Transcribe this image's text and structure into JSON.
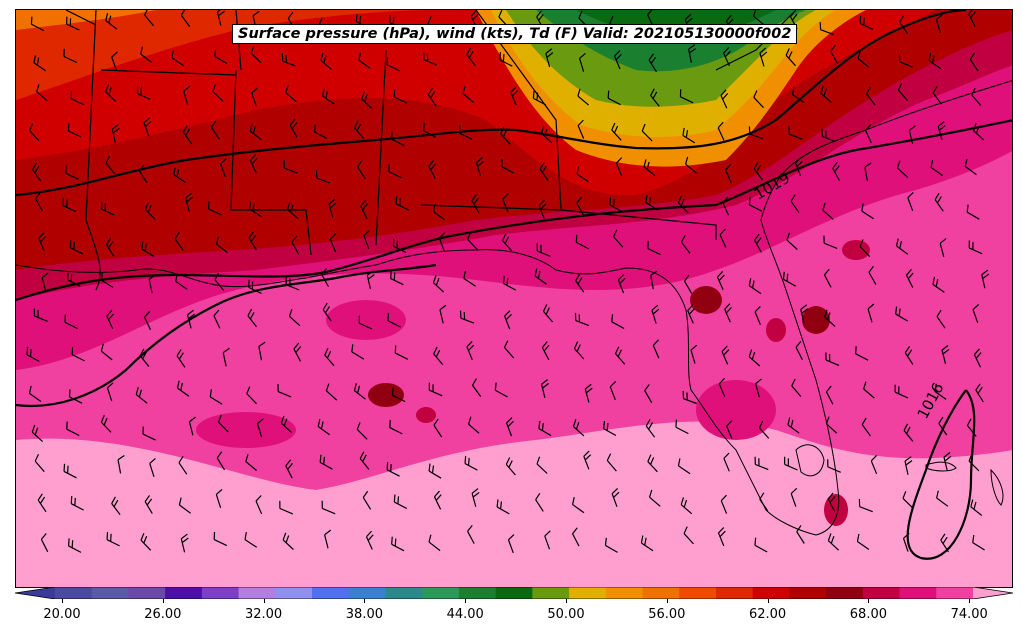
{
  "title": "Surface pressure (hPa), wind (kts), Td (F) Valid: 202105130000f002",
  "isobar_labels": [
    "1019",
    "1016"
  ],
  "colorbar": {
    "tick_labels": [
      "20.00",
      "26.00",
      "32.00",
      "38.00",
      "44.00",
      "50.00",
      "56.00",
      "62.00",
      "68.00",
      "74.00"
    ],
    "colors": [
      "#3a3a9a",
      "#4a4aa0",
      "#5a5aa8",
      "#6a4aa8",
      "#4a10a8",
      "#7a40c8",
      "#b080e0",
      "#9090f0",
      "#5070f0",
      "#3a80d0",
      "#2a8a8a",
      "#2a9a5a",
      "#1a8030",
      "#0a6a10",
      "#6a9a10",
      "#e0b000",
      "#f09000",
      "#f07000",
      "#f04a00",
      "#e02800",
      "#d00000",
      "#b00000",
      "#900010",
      "#c00040",
      "#e0107a",
      "#f040a0",
      "#ff9fd0"
    ]
  }
}
